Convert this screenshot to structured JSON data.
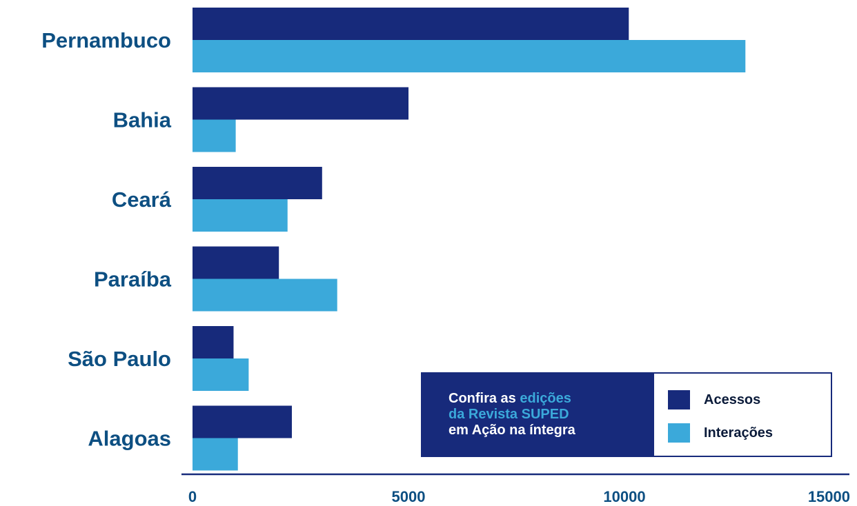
{
  "chart_data": {
    "type": "bar",
    "orientation": "horizontal",
    "categories": [
      "Pernambuco",
      "Bahia",
      "Ceará",
      "Paraíba",
      "São Paulo",
      "Alagoas"
    ],
    "series": [
      {
        "name": "Acessos",
        "color": "#172a7b",
        "values": [
          10100,
          5000,
          3000,
          2000,
          950,
          2300
        ]
      },
      {
        "name": "Interações",
        "color": "#3ba9da",
        "values": [
          12800,
          1000,
          2200,
          3350,
          1300,
          1050
        ]
      }
    ],
    "xlim": [
      0,
      15000
    ],
    "xticks": [
      "0",
      "5000",
      "10000",
      "15000"
    ],
    "grid": false,
    "legend_position": "bottom-right"
  },
  "legend": {
    "promo_line1_plain": "Confira as ",
    "promo_line1_highlight": "edições",
    "promo_line2_highlight": "da Revista SUPED",
    "promo_line3_plain": "em Ação na íntegra",
    "items": [
      "Acessos",
      "Interações"
    ]
  }
}
